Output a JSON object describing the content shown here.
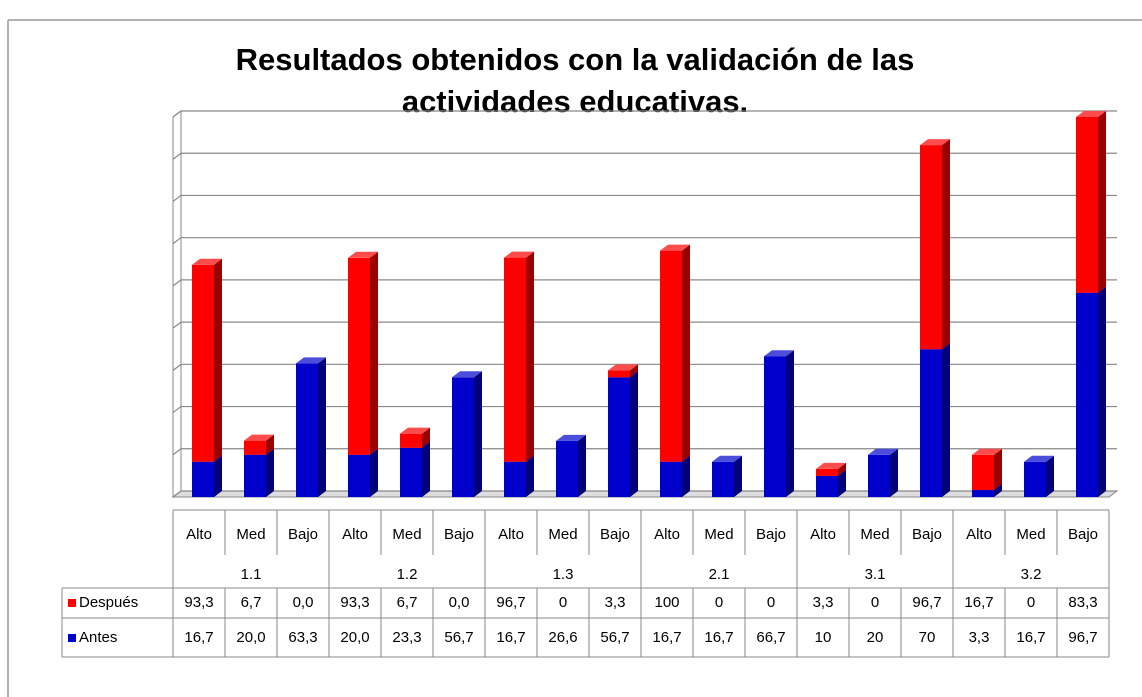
{
  "chart_data": {
    "type": "bar",
    "stacked": true,
    "title": "Resultados obtenidos con la validación de las actividades educativas.",
    "categories": [
      "Alto",
      "Med",
      "Bajo",
      "Alto",
      "Med",
      "Bajo",
      "Alto",
      "Med",
      "Bajo",
      "Alto",
      "Med",
      "Bajo",
      "Alto",
      "Med",
      "Bajo",
      "Alto",
      "Med",
      "Bajo"
    ],
    "groups": [
      "1.1",
      "1.2",
      "1.3",
      "2.1",
      "3.1",
      "3.2"
    ],
    "series": [
      {
        "name": "Antes",
        "color": "#0000cc",
        "values": [
          16.7,
          20.0,
          63.3,
          20.0,
          23.3,
          56.7,
          16.7,
          26.6,
          56.7,
          16.7,
          16.7,
          66.7,
          10,
          20,
          70,
          3.3,
          16.7,
          96.7
        ],
        "value_labels": [
          "16,7",
          "20,0",
          "63,3",
          "20,0",
          "23,3",
          "56,7",
          "16,7",
          "26,6",
          "56,7",
          "16,7",
          "16,7",
          "66,7",
          "10",
          "20",
          "70",
          "3,3",
          "16,7",
          "96,7"
        ]
      },
      {
        "name": "Después",
        "color": "#ff0000",
        "values": [
          93.3,
          6.7,
          0,
          93.3,
          6.7,
          0,
          96.7,
          0,
          3.3,
          100,
          0,
          0,
          3.3,
          0,
          96.7,
          16.7,
          0,
          83.3
        ],
        "value_labels": [
          "93,3",
          "6,7",
          "0,0",
          "93,3",
          "6,7",
          "0,0",
          "96,7",
          "0",
          "3,3",
          "100",
          "0",
          "0",
          "3,3",
          "0",
          "96,7",
          "16,7",
          "0",
          "83,3"
        ]
      }
    ],
    "ylim": [
      0,
      180
    ],
    "yticks": [
      0,
      20,
      40,
      60,
      80,
      100,
      120,
      140,
      160,
      180
    ],
    "grid": true
  }
}
